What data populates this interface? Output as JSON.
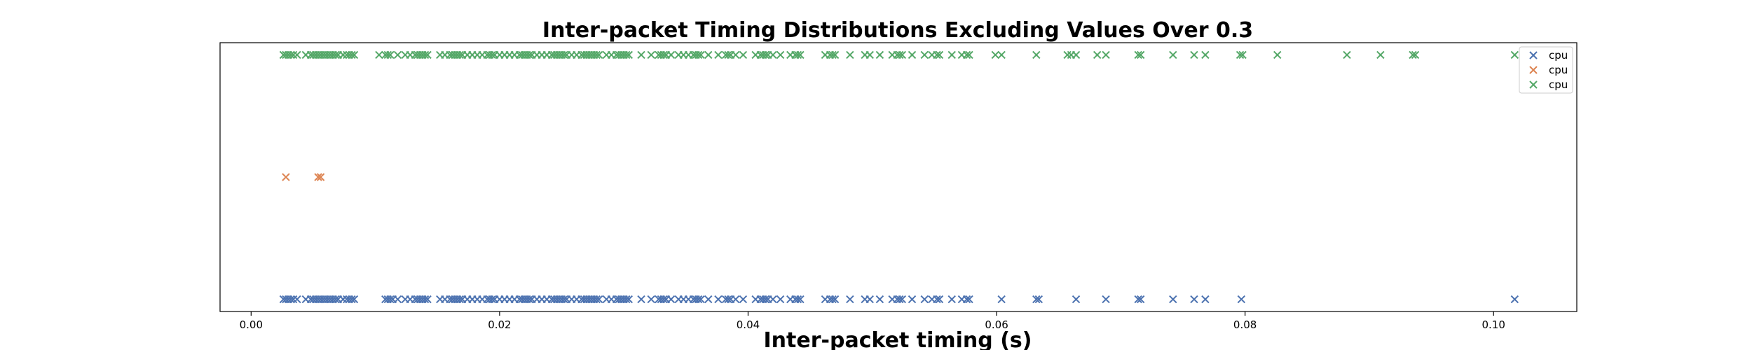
{
  "chart_data": {
    "type": "scatter",
    "title": "Inter-packet Timing Distributions Excluding Values Over 0.3",
    "xlabel": "Inter-packet timing (s)",
    "ylabel": "",
    "xlim": [
      -0.0025,
      0.1067
    ],
    "ylim": [
      -0.1,
      2.1
    ],
    "x_ticks": [
      0.0,
      0.02,
      0.04,
      0.06,
      0.08,
      0.1
    ],
    "x_tick_labels": [
      "0.00",
      "0.02",
      "0.04",
      "0.06",
      "0.08",
      "0.10"
    ],
    "y_ticks_shown": false,
    "legend_position": "top-right",
    "marker": "x",
    "series": [
      {
        "name": "cpu",
        "color": "#4c72b0",
        "y": 0,
        "x": [
          0.0026,
          0.0028,
          0.003,
          0.0032,
          0.0034,
          0.0037,
          0.0044,
          0.0048,
          0.005,
          0.0052,
          0.0054,
          0.0056,
          0.0058,
          0.006,
          0.0062,
          0.0064,
          0.0066,
          0.0068,
          0.007,
          0.0074,
          0.0077,
          0.0079,
          0.0081,
          0.0083,
          0.0108,
          0.011,
          0.0112,
          0.0114,
          0.0118,
          0.0124,
          0.0128,
          0.0132,
          0.0134,
          0.0136,
          0.0138,
          0.014,
          0.0142,
          0.0152,
          0.0156,
          0.016,
          0.0162,
          0.0164,
          0.0166,
          0.0168,
          0.017,
          0.0174,
          0.0178,
          0.0182,
          0.0186,
          0.019,
          0.0192,
          0.0194,
          0.0196,
          0.02,
          0.0204,
          0.0208,
          0.0212,
          0.0216,
          0.0218,
          0.022,
          0.0222,
          0.0224,
          0.0226,
          0.023,
          0.0234,
          0.0238,
          0.0242,
          0.0244,
          0.0246,
          0.0248,
          0.025,
          0.0252,
          0.0254,
          0.0258,
          0.0262,
          0.0266,
          0.0268,
          0.027,
          0.0272,
          0.0274,
          0.0276,
          0.0278,
          0.028,
          0.0286,
          0.029,
          0.0294,
          0.0296,
          0.0298,
          0.03,
          0.0302,
          0.0304,
          0.0314,
          0.0322,
          0.0328,
          0.033,
          0.0332,
          0.0334,
          0.0338,
          0.0344,
          0.0348,
          0.0352,
          0.0356,
          0.0358,
          0.036,
          0.0362,
          0.0368,
          0.0376,
          0.0382,
          0.0384,
          0.0386,
          0.039,
          0.0396,
          0.0406,
          0.041,
          0.0412,
          0.0414,
          0.0416,
          0.042,
          0.0426,
          0.0434,
          0.0438,
          0.044,
          0.0442,
          0.0462,
          0.0466,
          0.0468,
          0.047,
          0.0482,
          0.0494,
          0.0498,
          0.0506,
          0.0516,
          0.052,
          0.0522,
          0.0524,
          0.0532,
          0.0542,
          0.0548,
          0.0552,
          0.0554,
          0.0564,
          0.0572,
          0.0576,
          0.0578,
          0.0604,
          0.0632,
          0.0634,
          0.0664,
          0.0688,
          0.0714,
          0.0716,
          0.0742,
          0.0759,
          0.0768,
          0.0797,
          0.1017
        ]
      },
      {
        "name": "cpu",
        "color": "#dd8452",
        "y": 1,
        "x": [
          0.0028,
          0.0054,
          0.0056
        ]
      },
      {
        "name": "cpu",
        "color": "#55a868",
        "y": 2,
        "x": [
          0.0026,
          0.0028,
          0.003,
          0.0032,
          0.0034,
          0.0037,
          0.0044,
          0.0048,
          0.005,
          0.0052,
          0.0054,
          0.0056,
          0.0058,
          0.006,
          0.0062,
          0.0064,
          0.0066,
          0.0068,
          0.007,
          0.0074,
          0.0077,
          0.0079,
          0.0081,
          0.0083,
          0.0103,
          0.0108,
          0.011,
          0.0112,
          0.0118,
          0.0124,
          0.0128,
          0.0132,
          0.0134,
          0.0136,
          0.0138,
          0.014,
          0.0142,
          0.0152,
          0.0156,
          0.016,
          0.0162,
          0.0164,
          0.0166,
          0.0168,
          0.017,
          0.0174,
          0.0178,
          0.0182,
          0.0186,
          0.019,
          0.0192,
          0.0194,
          0.0196,
          0.02,
          0.0204,
          0.0208,
          0.0212,
          0.0216,
          0.0218,
          0.022,
          0.0222,
          0.0224,
          0.0226,
          0.023,
          0.0234,
          0.0238,
          0.0242,
          0.0244,
          0.0246,
          0.0248,
          0.025,
          0.0252,
          0.0254,
          0.0258,
          0.0262,
          0.0266,
          0.0268,
          0.027,
          0.0272,
          0.0274,
          0.0276,
          0.0278,
          0.028,
          0.0286,
          0.029,
          0.0294,
          0.0296,
          0.0298,
          0.03,
          0.0302,
          0.0304,
          0.0314,
          0.0322,
          0.0328,
          0.033,
          0.0332,
          0.0334,
          0.0338,
          0.0344,
          0.0348,
          0.0352,
          0.0356,
          0.0358,
          0.036,
          0.0362,
          0.0368,
          0.0376,
          0.0382,
          0.0384,
          0.0386,
          0.039,
          0.0396,
          0.0406,
          0.041,
          0.0412,
          0.0414,
          0.0416,
          0.042,
          0.0426,
          0.0434,
          0.0438,
          0.044,
          0.0442,
          0.0462,
          0.0466,
          0.0468,
          0.047,
          0.0482,
          0.0494,
          0.0498,
          0.0506,
          0.0516,
          0.052,
          0.0522,
          0.0524,
          0.0532,
          0.0542,
          0.0548,
          0.0552,
          0.0554,
          0.0564,
          0.0572,
          0.0576,
          0.0578,
          0.0599,
          0.0604,
          0.0632,
          0.0657,
          0.066,
          0.0664,
          0.0681,
          0.0688,
          0.0714,
          0.0716,
          0.0742,
          0.0759,
          0.0768,
          0.0796,
          0.0798,
          0.0826,
          0.0882,
          0.0909,
          0.0935,
          0.0937,
          0.1017
        ]
      }
    ]
  }
}
